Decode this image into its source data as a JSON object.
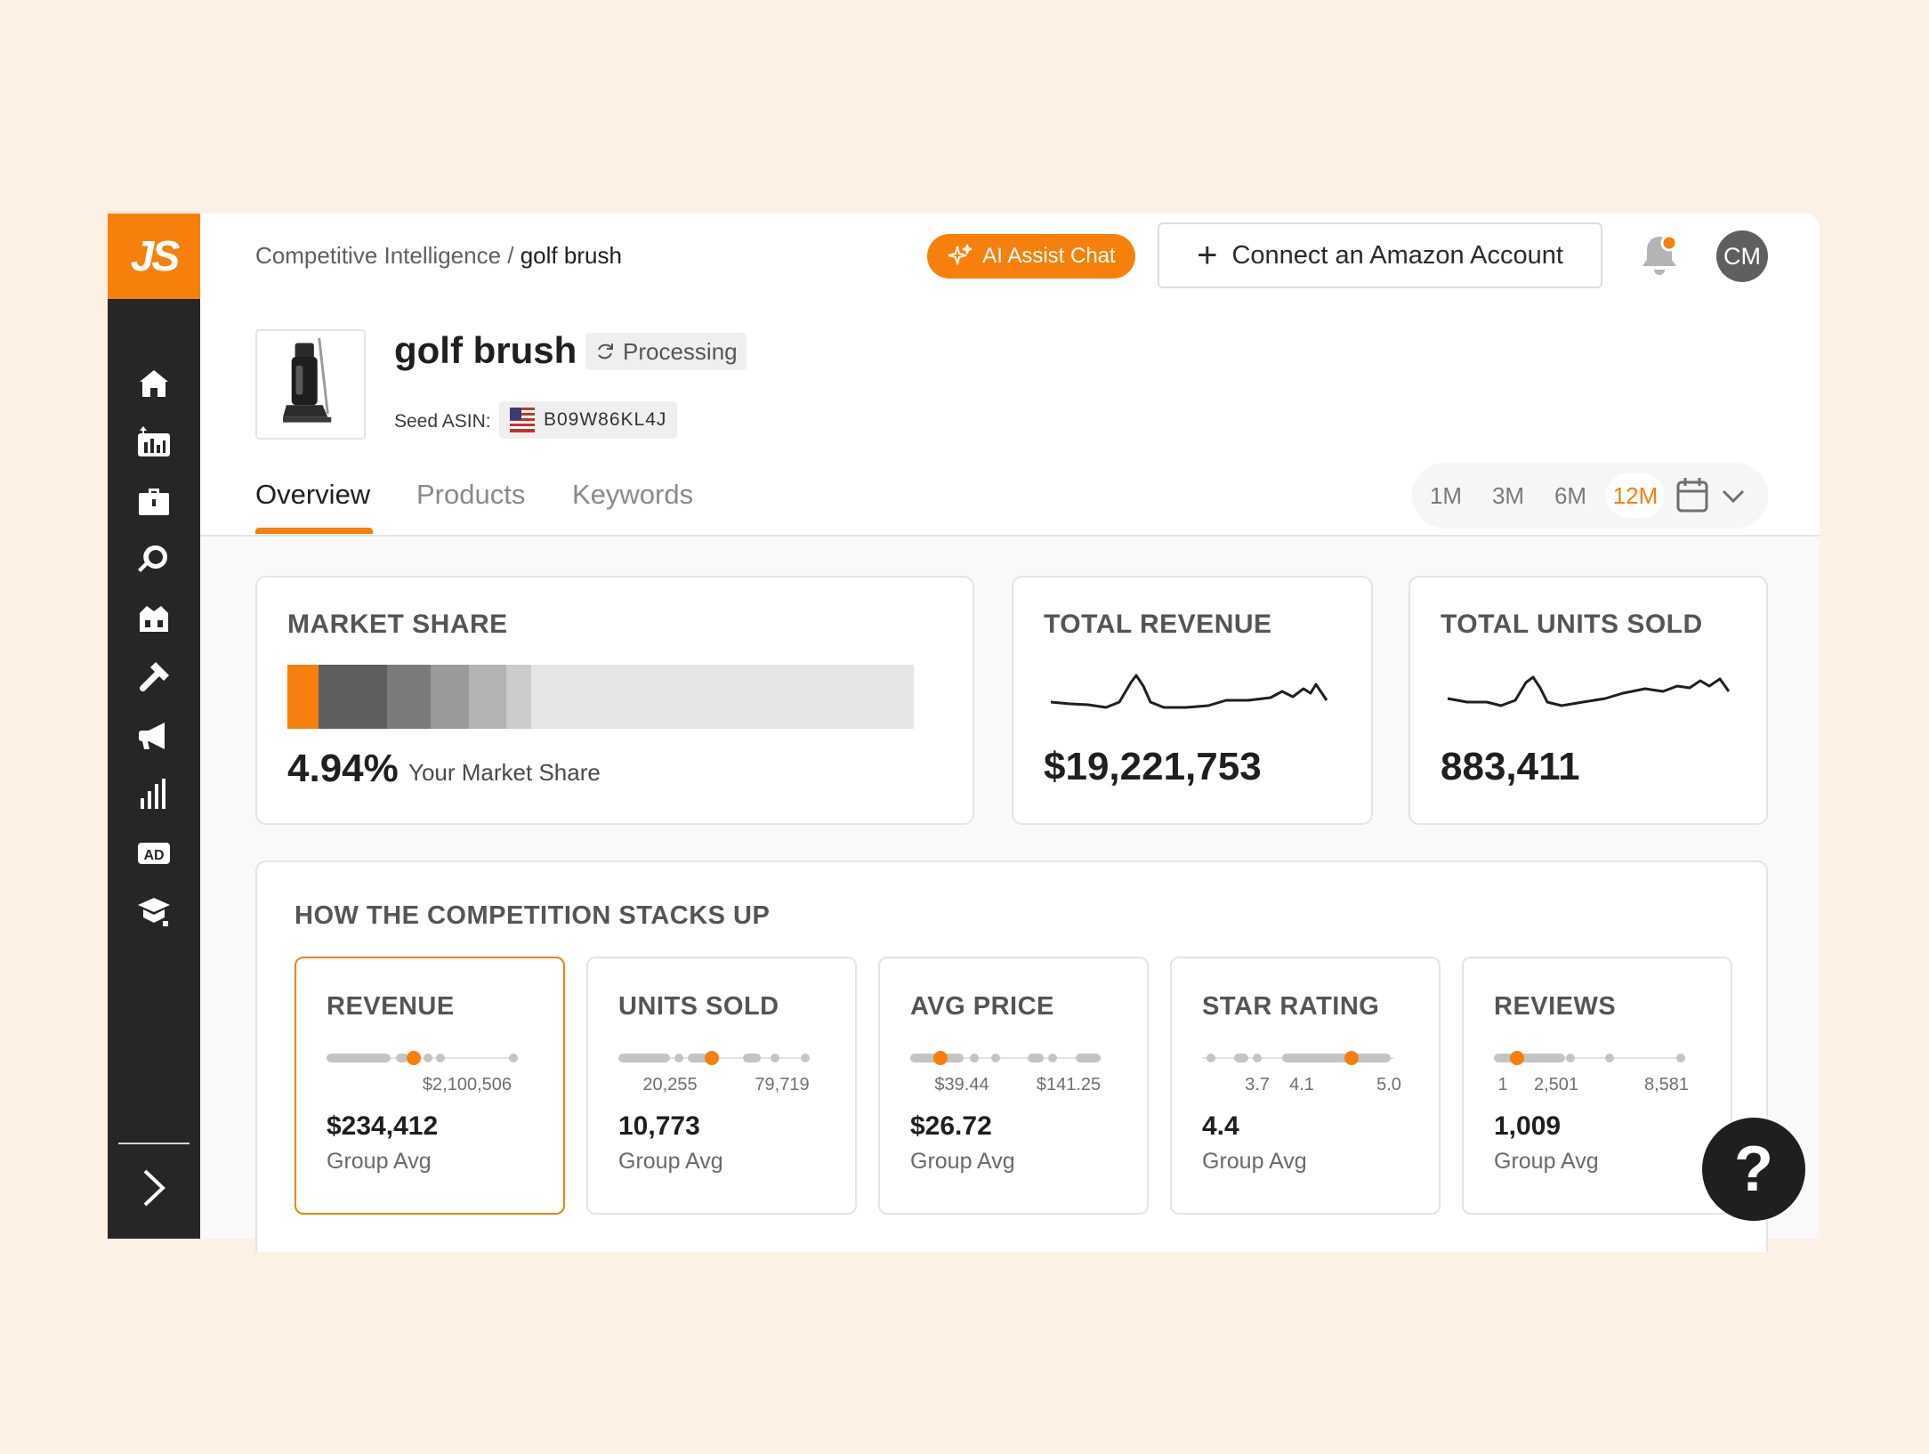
{
  "brand": {
    "logo_text": "JS",
    "accent": "#f6800b",
    "sidebar_bg": "#262626"
  },
  "sidebar": {
    "items": [
      {
        "name": "home",
        "icon": "home-icon"
      },
      {
        "name": "analytics",
        "icon": "chart-icon"
      },
      {
        "name": "products",
        "icon": "briefcase-icon"
      },
      {
        "name": "research",
        "icon": "magnifier-icon"
      },
      {
        "name": "store",
        "icon": "store-icon"
      },
      {
        "name": "tools",
        "icon": "hammer-icon"
      },
      {
        "name": "marketing",
        "icon": "megaphone-icon"
      },
      {
        "name": "reports",
        "icon": "bar-chart-icon"
      },
      {
        "name": "ads",
        "icon": "ad-icon",
        "label": "AD"
      },
      {
        "name": "academy",
        "icon": "graduation-cap-icon"
      }
    ],
    "expand_icon": "chevron-right-icon"
  },
  "header": {
    "breadcrumb_parent": "Competitive Intelligence /",
    "breadcrumb_current": "golf brush",
    "ai_button": "AI Assist Chat",
    "connect_button": "Connect an Amazon Account",
    "avatar_initials": "CM"
  },
  "product": {
    "title": "golf brush",
    "status": "Processing",
    "seed_label": "Seed ASIN:",
    "asin": "B09W86KL4J"
  },
  "tabs": [
    {
      "label": "Overview",
      "active": true
    },
    {
      "label": "Products",
      "active": false
    },
    {
      "label": "Keywords",
      "active": false
    }
  ],
  "periods": [
    {
      "label": "1M",
      "active": false
    },
    {
      "label": "3M",
      "active": false
    },
    {
      "label": "6M",
      "active": false
    },
    {
      "label": "12M",
      "active": true
    }
  ],
  "market_share": {
    "title": "MARKET SHARE",
    "value": "4.94%",
    "subtitle": "Your Market Share",
    "segments": [
      {
        "share": 4.94,
        "color": "#f6800b"
      },
      {
        "share": 11,
        "color": "#5e5e5e"
      },
      {
        "share": 7,
        "color": "#7b7b7b"
      },
      {
        "share": 6,
        "color": "#9a9a9a"
      },
      {
        "share": 6,
        "color": "#b3b3b3"
      },
      {
        "share": 4,
        "color": "#cccccc"
      },
      {
        "share": 61.06,
        "color": "#e6e6e6"
      }
    ]
  },
  "total_revenue": {
    "title": "TOTAL REVENUE",
    "value": "$19,221,753"
  },
  "total_units": {
    "title": "TOTAL UNITS SOLD",
    "value": "883,411"
  },
  "competition": {
    "title": "HOW THE COMPETITION STACKS UP",
    "metrics": [
      {
        "title": "REVENUE",
        "value": "$234,412",
        "sub": "Group Avg",
        "ticks": [
          "$2,100,506"
        ],
        "selected": true
      },
      {
        "title": "UNITS SOLD",
        "value": "10,773",
        "sub": "Group Avg",
        "ticks": [
          "20,255",
          "79,719"
        ],
        "selected": false
      },
      {
        "title": "AVG PRICE",
        "value": "$26.72",
        "sub": "Group Avg",
        "ticks": [
          "$39.44",
          "$141.25"
        ],
        "selected": false
      },
      {
        "title": "STAR RATING",
        "value": "4.4",
        "sub": "Group Avg",
        "ticks": [
          "3.7",
          "4.1",
          "5.0"
        ],
        "selected": false
      },
      {
        "title": "REVIEWS",
        "value": "1,009",
        "sub": "Group Avg",
        "ticks": [
          "1",
          "2,501",
          "8,581"
        ],
        "selected": false
      }
    ]
  },
  "help": {
    "label": "?"
  }
}
